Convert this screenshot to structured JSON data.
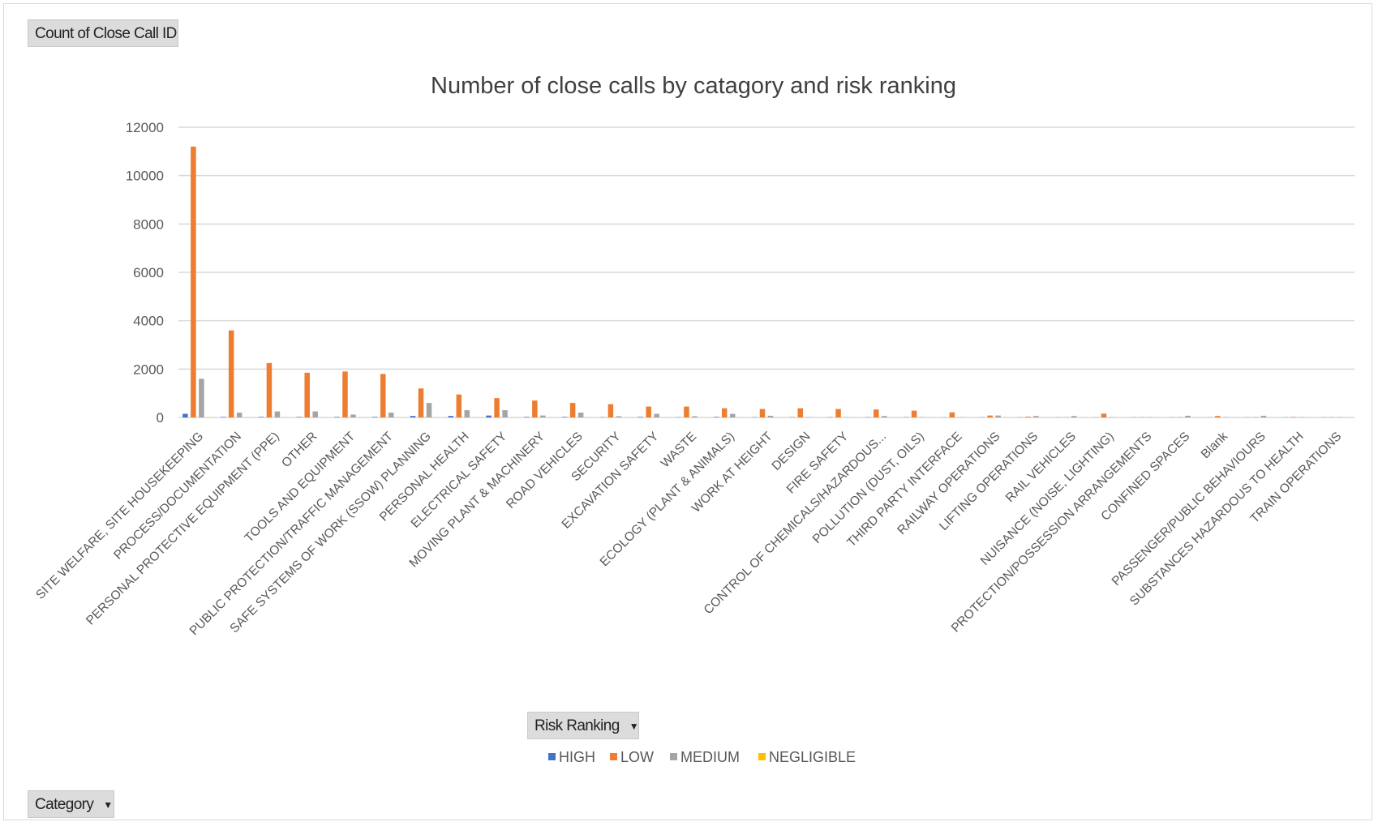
{
  "pivot_fields": {
    "values_field": "Count of Close Call ID",
    "legend_field": "Risk Ranking",
    "axis_field": "Category"
  },
  "chart_data": {
    "type": "bar",
    "title": "Number of close calls by catagory and risk ranking",
    "xlabel": "",
    "ylabel": "",
    "ylim": [
      0,
      12000
    ],
    "yticks": [
      0,
      2000,
      4000,
      6000,
      8000,
      10000,
      12000
    ],
    "grid": true,
    "legend_position": "bottom",
    "categories": [
      "SITE WELFARE, SITE HOUSEKEEPING",
      "PROCESS/DOCUMENTATION",
      "PERSONAL PROTECTIVE EQUIPMENT (PPE)",
      "OTHER",
      "TOOLS AND EQUIPMENT",
      "PUBLIC PROTECTION/TRAFFIC MANAGEMENT",
      "SAFE SYSTEMS OF WORK (SSOW) PLANNING",
      "PERSONAL HEALTH",
      "ELECTRICAL SAFETY",
      "MOVING PLANT & MACHINERY",
      "ROAD VEHICLES",
      "SECURITY",
      "EXCAVATION SAFETY",
      "WASTE",
      "ECOLOGY (PLANT & ANIMALS)",
      "WORK AT HEIGHT",
      "DESIGN",
      "FIRE SAFETY",
      "CONTROL OF CHEMICALS/HAZARDOUS...",
      "POLLUTION (DUST, OILS)",
      "THIRD PARTY INTERFACE",
      "RAILWAY OPERATIONS",
      "LIFTING OPERATIONS",
      "RAIL VEHICLES",
      "NUISANCE (NOISE, LIGHTING)",
      "PROTECTION/POSSESSION ARRANGEMENTS",
      "CONFINED SPACES",
      "Blank",
      "PASSENGER/PUBLIC BEHAVIOURS",
      "SUBSTANCES HAZARDOUS TO HEALTH",
      "TRAIN OPERATIONS"
    ],
    "series": [
      {
        "name": "HIGH",
        "color": "#4472c4",
        "values": [
          150,
          20,
          20,
          20,
          20,
          20,
          60,
          60,
          80,
          20,
          20,
          10,
          20,
          10,
          20,
          10,
          10,
          10,
          10,
          10,
          5,
          5,
          5,
          5,
          5,
          5,
          5,
          5,
          5,
          5,
          5
        ]
      },
      {
        "name": "LOW",
        "color": "#ed7d31",
        "values": [
          11200,
          3600,
          2250,
          1850,
          1900,
          1800,
          1200,
          950,
          800,
          700,
          600,
          550,
          450,
          450,
          380,
          350,
          380,
          350,
          330,
          280,
          210,
          80,
          30,
          10,
          160,
          10,
          10,
          60,
          10,
          20,
          10
        ]
      },
      {
        "name": "MEDIUM",
        "color": "#a5a5a5",
        "values": [
          1600,
          200,
          250,
          250,
          120,
          200,
          600,
          300,
          300,
          80,
          200,
          50,
          150,
          50,
          150,
          70,
          10,
          10,
          60,
          10,
          10,
          80,
          60,
          60,
          10,
          10,
          70,
          10,
          70,
          10,
          10
        ]
      },
      {
        "name": "NEGLIGIBLE",
        "color": "#ffc000",
        "values": [
          10,
          10,
          5,
          5,
          5,
          5,
          5,
          5,
          5,
          5,
          5,
          5,
          5,
          5,
          5,
          5,
          5,
          5,
          5,
          5,
          5,
          5,
          5,
          5,
          5,
          5,
          5,
          5,
          5,
          5,
          5
        ]
      }
    ]
  }
}
